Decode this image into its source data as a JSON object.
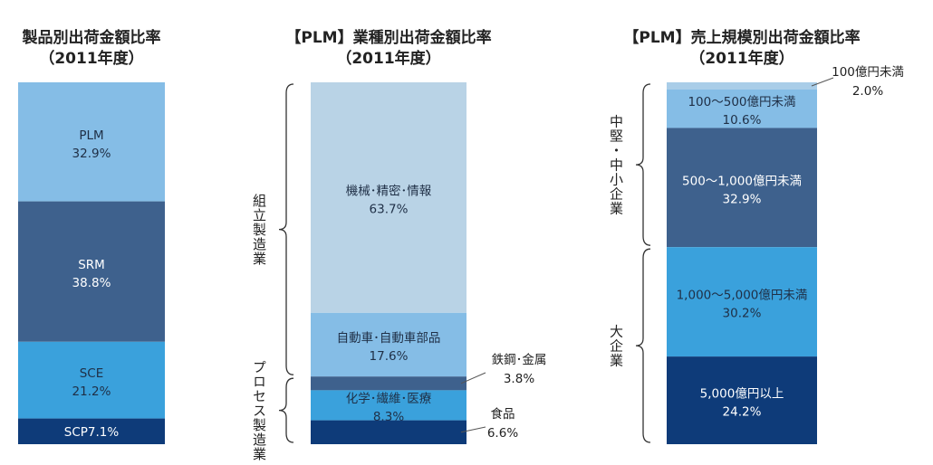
{
  "chart_data": [
    {
      "type": "stacked-bar-100",
      "title": "製品別出荷金額比率",
      "subtitle": "（2011年度）",
      "segments": [
        {
          "name": "PLM",
          "value": 32.9,
          "color": "#85bde6",
          "text_color": "#1f2f46",
          "label": "PLM",
          "value_label": "32.9%"
        },
        {
          "name": "SRM",
          "value": 38.8,
          "color": "#3e618d",
          "text_color": "#ffffff",
          "label": "SRM",
          "value_label": "38.8%"
        },
        {
          "name": "SCE",
          "value": 21.2,
          "color": "#3aa1dc",
          "text_color": "#1f2f46",
          "label": "SCE",
          "value_label": "21.2%"
        },
        {
          "name": "SCP",
          "value": 7.1,
          "color": "#0e3b79",
          "text_color": "#ffffff",
          "label": "SCP7.1%",
          "value_label": ""
        }
      ]
    },
    {
      "type": "stacked-bar-100",
      "title": "【PLM】業種別出荷金額比率",
      "subtitle": "（2011年度）",
      "segments": [
        {
          "name": "機械･精密･情報",
          "value": 63.7,
          "color": "#b9d3e6",
          "text_color": "#1f2f46",
          "label": "機械･精密･情報",
          "value_label": "63.7%"
        },
        {
          "name": "自動車･自動車部品",
          "value": 17.6,
          "color": "#85bde6",
          "text_color": "#1f2f46",
          "label": "自動車･自動車部品",
          "value_label": "17.6%"
        },
        {
          "name": "鉄鋼･金属",
          "value": 3.8,
          "color": "#3e618d",
          "text_color": "#ffffff",
          "label": "",
          "value_label": "",
          "outside_label": "鉄鋼･金属",
          "outside_value": "3.8%"
        },
        {
          "name": "化学･繊維･医療",
          "value": 8.3,
          "color": "#3aa1dc",
          "text_color": "#1f2f46",
          "label": "化学･繊維･医療",
          "value_label": "8.3%"
        },
        {
          "name": "食品",
          "value": 6.6,
          "color": "#0e3b79",
          "text_color": "#ffffff",
          "label": "",
          "value_label": "",
          "outside_label": "食品",
          "outside_value": "6.6%"
        }
      ],
      "groups": [
        {
          "label": "組立製造業",
          "from": 0,
          "to": 1
        },
        {
          "label": "プロセス製造業",
          "from": 2,
          "to": 4
        }
      ]
    },
    {
      "type": "stacked-bar-100",
      "title": "【PLM】売上規模別出荷金額比率",
      "subtitle": "（2011年度）",
      "segments": [
        {
          "name": "100億円未満",
          "value": 2.0,
          "color": "#a9cde8",
          "text_color": "#1f2f46",
          "label": "",
          "value_label": "",
          "outside_label": "100億円未満",
          "outside_value": "2.0%"
        },
        {
          "name": "100～500億円未満",
          "value": 10.6,
          "color": "#85bde6",
          "text_color": "#1f2f46",
          "label": "100～500億円未満",
          "value_label": "10.6%"
        },
        {
          "name": "500～1,000億円未満",
          "value": 32.9,
          "color": "#3e618d",
          "text_color": "#ffffff",
          "label": "500～1,000億円未満",
          "value_label": "32.9%"
        },
        {
          "name": "1,000～5,000億円未満",
          "value": 30.2,
          "color": "#3aa1dc",
          "text_color": "#1f2f46",
          "label": "1,000～5,000億円未満",
          "value_label": "30.2%"
        },
        {
          "name": "5,000億円以上",
          "value": 24.2,
          "color": "#0e3b79",
          "text_color": "#ffffff",
          "label": "5,000億円以上",
          "value_label": "24.2%"
        }
      ],
      "groups": [
        {
          "label": "中堅・中小企業",
          "from": 0,
          "to": 2
        },
        {
          "label": "大企業",
          "from": 3,
          "to": 4
        }
      ]
    }
  ]
}
